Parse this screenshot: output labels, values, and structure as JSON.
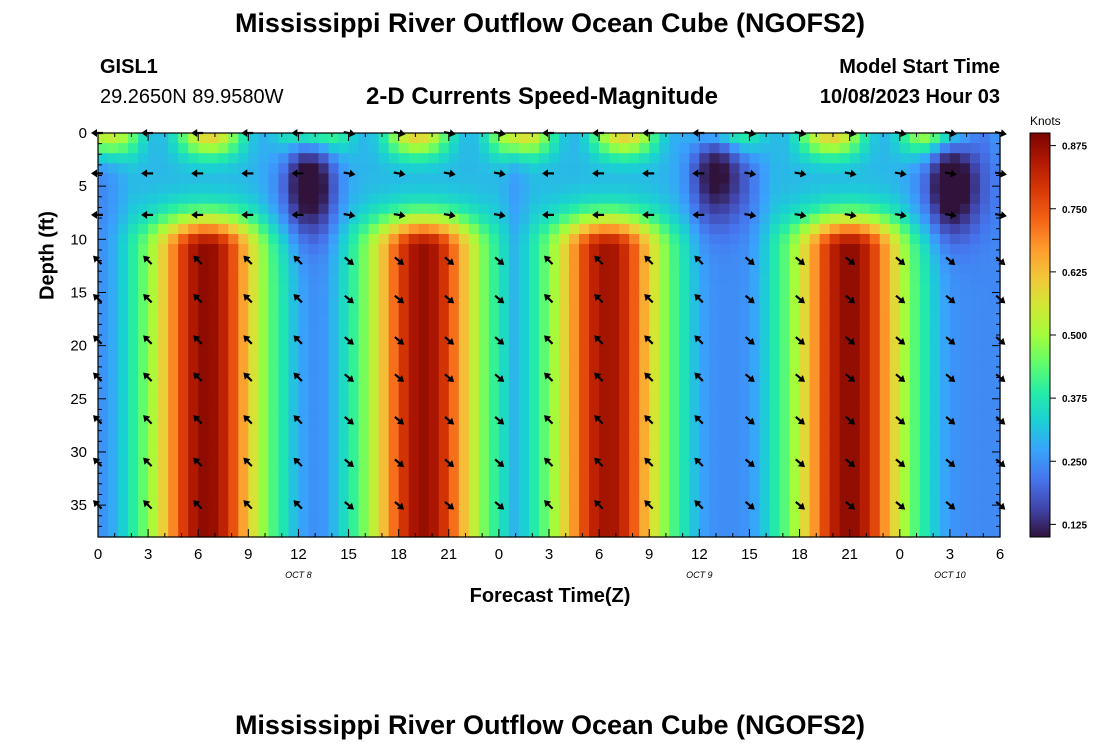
{
  "header": {
    "title": "Mississippi River Outflow Ocean Cube (NGOFS2)",
    "station": "GISL1",
    "coords": "29.2650N  89.9580W",
    "subtitle": "2-D Currents Speed-Magnitude",
    "model_start_label": "Model Start Time",
    "model_start_value": "10/08/2023 Hour 03"
  },
  "footer": {
    "title": "Mississippi River Outflow Ocean Cube (NGOFS2)"
  },
  "chart_data": {
    "type": "heatmap",
    "title": "2-D Currents Speed-Magnitude",
    "xlabel": "Forecast Time(Z)",
    "ylabel": "Depth (ft)",
    "x_range_hours": [
      0,
      54
    ],
    "ylim": [
      0,
      38
    ],
    "y_inverted": true,
    "x_ticks": [
      {
        "hour": 0,
        "label": "0"
      },
      {
        "hour": 3,
        "label": "3"
      },
      {
        "hour": 6,
        "label": "6"
      },
      {
        "hour": 9,
        "label": "9"
      },
      {
        "hour": 12,
        "label": "12"
      },
      {
        "hour": 15,
        "label": "15"
      },
      {
        "hour": 18,
        "label": "18"
      },
      {
        "hour": 21,
        "label": "21"
      },
      {
        "hour": 24,
        "label": "0"
      },
      {
        "hour": 27,
        "label": "3"
      },
      {
        "hour": 30,
        "label": "6"
      },
      {
        "hour": 33,
        "label": "9"
      },
      {
        "hour": 36,
        "label": "12"
      },
      {
        "hour": 39,
        "label": "15"
      },
      {
        "hour": 42,
        "label": "18"
      },
      {
        "hour": 45,
        "label": "21"
      },
      {
        "hour": 48,
        "label": "0"
      },
      {
        "hour": 51,
        "label": "3"
      },
      {
        "hour": 54,
        "label": "6"
      }
    ],
    "date_labels": [
      {
        "hour": 12,
        "label": "OCT 8"
      },
      {
        "hour": 36,
        "label": "OCT 9"
      },
      {
        "hour": 51,
        "label": "OCT 10"
      }
    ],
    "y_ticks": [
      {
        "depth": 0,
        "label": "0"
      },
      {
        "depth": 5,
        "label": "5"
      },
      {
        "depth": 10,
        "label": "10"
      },
      {
        "depth": 15,
        "label": "15"
      },
      {
        "depth": 20,
        "label": "20"
      },
      {
        "depth": 25,
        "label": "25"
      },
      {
        "depth": 30,
        "label": "30"
      },
      {
        "depth": 35,
        "label": "35"
      }
    ],
    "colorbar": {
      "unit": "Knots",
      "range": [
        0.1,
        0.9
      ],
      "ticks": [
        "0.875",
        "0.750",
        "0.625",
        "0.500",
        "0.375",
        "0.250",
        "0.125"
      ],
      "tick_values": [
        0.875,
        0.75,
        0.625,
        0.5,
        0.375,
        0.25,
        0.125
      ],
      "colormap": [
        "#30123b",
        "#4145ab",
        "#4675ed",
        "#39a2fc",
        "#1bcfd4",
        "#24eca6",
        "#61fc6c",
        "#a4fc3b",
        "#d1e834",
        "#f3c63a",
        "#fe9b2d",
        "#f36315",
        "#d93806",
        "#b11901",
        "#7a0402"
      ]
    },
    "speed_peaks": [
      {
        "hour": 6.5,
        "depth_from": 11,
        "depth_to": 38,
        "speed": 0.88,
        "direction": "flood (toward upper-left)"
      },
      {
        "hour": 19.5,
        "depth_from": 11,
        "depth_to": 38,
        "speed": 0.87,
        "direction": "ebb (toward lower-right)"
      },
      {
        "hour": 30.5,
        "depth_from": 11,
        "depth_to": 38,
        "speed": 0.86,
        "direction": "flood (toward upper-left)"
      },
      {
        "hour": 45,
        "depth_from": 11,
        "depth_to": 38,
        "speed": 0.88,
        "direction": "ebb (toward lower-right)"
      }
    ],
    "surface_minima": [
      {
        "hour": 12.5,
        "depth": 5,
        "speed": 0.12
      },
      {
        "hour": 37,
        "depth": 4,
        "speed": 0.15
      },
      {
        "hour": 51,
        "depth": 5,
        "speed": 0.1
      }
    ],
    "arrow_columns_hours": [
      0,
      3,
      6,
      9,
      12,
      15,
      18,
      21,
      24,
      27,
      30,
      33,
      36,
      39,
      42,
      45,
      48,
      51,
      54
    ],
    "arrow_rows_depth": [
      0,
      3.8,
      7.7,
      12,
      15.6,
      19.5,
      23,
      27,
      31,
      35
    ]
  }
}
